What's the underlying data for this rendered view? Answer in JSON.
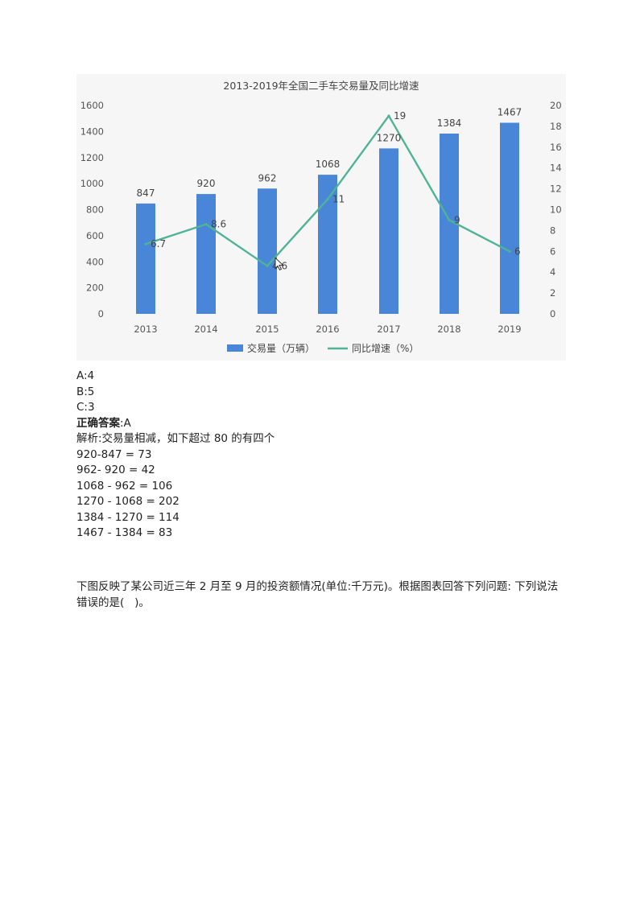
{
  "chart_data": {
    "type": "bar",
    "title": "2013-2019年全国二手车交易量及同比增速",
    "categories": [
      "2013",
      "2014",
      "2015",
      "2016",
      "2017",
      "2018",
      "2019"
    ],
    "series": [
      {
        "name": "交易量（万辆）",
        "kind": "bar",
        "axis": "left",
        "color": "#4a86d8",
        "values": [
          847,
          920,
          962,
          1068,
          1270,
          1384,
          1467
        ]
      },
      {
        "name": "同比增速（%）",
        "kind": "line",
        "axis": "right",
        "color": "#4fb396",
        "values": [
          6.7,
          8.6,
          4.6,
          11,
          19,
          9,
          6
        ]
      }
    ],
    "bar_labels": [
      "847",
      "920",
      "962",
      "1068",
      "1270",
      "1384",
      "1467"
    ],
    "line_labels": [
      "6.7",
      "8.6",
      "4.6",
      "11",
      "19",
      "9",
      "6"
    ],
    "ylim": [
      0,
      1600
    ],
    "y_ticks": [
      "0",
      "200",
      "400",
      "600",
      "800",
      "1000",
      "1200",
      "1400",
      "1600"
    ],
    "y2lim": [
      0,
      20
    ],
    "y2_ticks": [
      "0",
      "2",
      "4",
      "6",
      "8",
      "10",
      "12",
      "14",
      "16",
      "18",
      "20"
    ],
    "grid": false,
    "legend_position": "bottom"
  },
  "options": {
    "a": "A:4",
    "b": "B:5",
    "c": "C:3"
  },
  "answer": {
    "label": "正确答案",
    "value": ":A"
  },
  "analysis": {
    "intro": "解析:交易量相减，如下超过 80 的有四个",
    "steps": [
      "920-847 = 73",
      "962- 920 = 42",
      "1068 - 962 = 106",
      "1270 - 1068 = 202",
      "1384 - 1270 = 114",
      "1467 - 1384 = 83"
    ]
  },
  "next_question": {
    "line1": "下图反映了某公司近三年 2 月至 9 月的投资额情况(单位:千万元)。根据图表回答下列问题: 下列说法",
    "line2": "错误的是(   )。"
  }
}
